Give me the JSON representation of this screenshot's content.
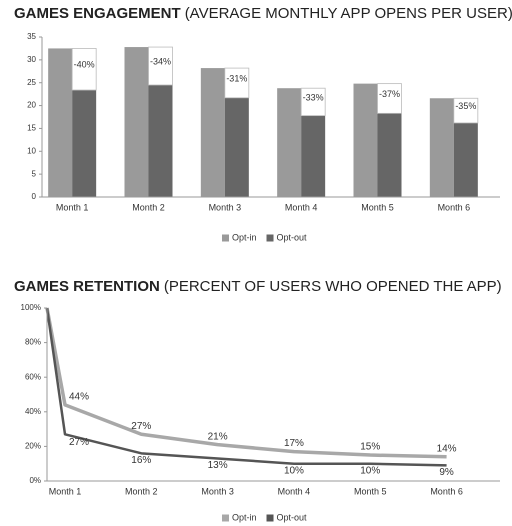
{
  "chart_data": [
    {
      "type": "bar",
      "title": "GAMES ENGAGEMENT",
      "subtitle": "(AVERAGE MONTHLY APP OPENS PER USER)",
      "categories": [
        "Month 1",
        "Month 2",
        "Month 3",
        "Month 4",
        "Month 5",
        "Month 6"
      ],
      "series": [
        {
          "name": "Opt-in",
          "color": "#9a9a9a",
          "values": [
            32.5,
            32.8,
            28.2,
            23.8,
            24.8,
            21.6
          ]
        },
        {
          "name": "Opt-out",
          "color": "#666666",
          "values": [
            23.4,
            24.5,
            21.7,
            17.8,
            18.3,
            16.2
          ]
        }
      ],
      "annotations": [
        "-40%",
        "-34%",
        "-31%",
        "-33%",
        "-37%",
        "-35%"
      ],
      "ylim": [
        0,
        35
      ],
      "yticks": [
        0,
        5,
        10,
        15,
        20,
        25,
        30,
        35
      ],
      "grid": false,
      "legend": "bottom"
    },
    {
      "type": "line",
      "title": "GAMES RETENTION",
      "subtitle": "(PERCENT OF USERS WHO OPENED THE APP)",
      "categories": [
        null,
        "Month 1",
        "Month 2",
        "Month 3",
        "Month 4",
        "Month 5",
        "Month 6"
      ],
      "series": [
        {
          "name": "Opt-in",
          "color": "#a8a8a8",
          "values": [
            100,
            44,
            27,
            21,
            17,
            15,
            14
          ],
          "value_labels": [
            null,
            "44%",
            "27%",
            "21%",
            "17%",
            "15%",
            "14%"
          ]
        },
        {
          "name": "Opt-out",
          "color": "#555555",
          "values": [
            100,
            27,
            16,
            13,
            10,
            10,
            9
          ],
          "value_labels": [
            null,
            "27%",
            "16%",
            "13%",
            "10%",
            "10%",
            "9%"
          ]
        }
      ],
      "ylim": [
        0,
        100
      ],
      "yticks": [
        {
          "value": 0,
          "label": "0%"
        },
        {
          "value": 20,
          "label": "20%"
        },
        {
          "value": 40,
          "label": "40%"
        },
        {
          "value": 60,
          "label": "60%"
        },
        {
          "value": 80,
          "label": "80%"
        },
        {
          "value": 100,
          "label": "100%"
        }
      ],
      "grid": false,
      "legend": "bottom"
    }
  ]
}
